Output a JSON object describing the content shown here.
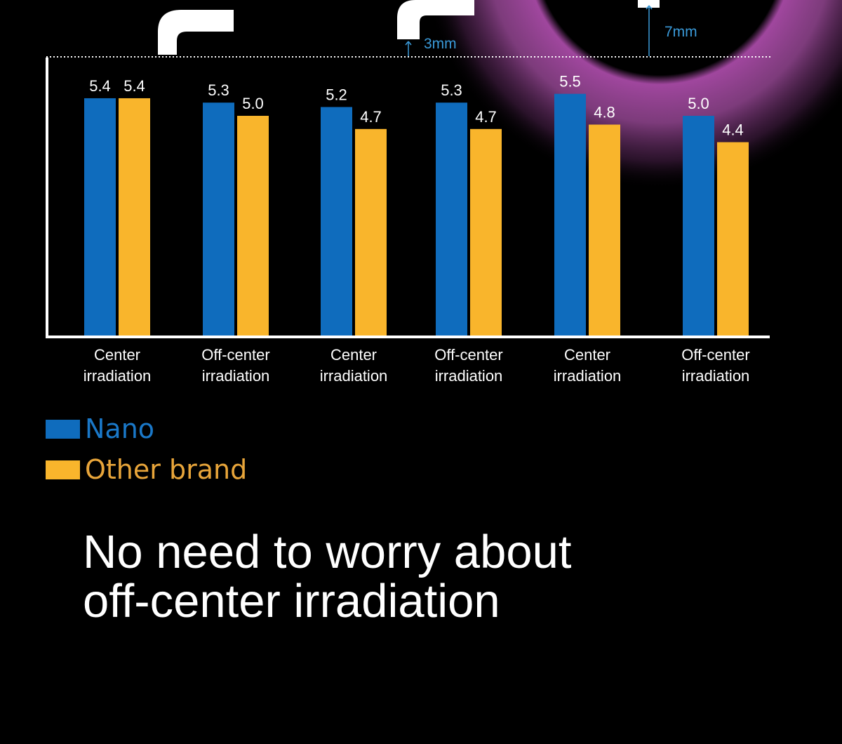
{
  "chart_data": {
    "type": "bar",
    "categories": [
      [
        "Center",
        "irradiation"
      ],
      [
        "Off-center",
        "irradiation"
      ],
      [
        "Center",
        "irradiation"
      ],
      [
        "Off-center",
        "irradiation"
      ],
      [
        "Center",
        "irradiation"
      ],
      [
        "Off-center",
        "irradiation"
      ]
    ],
    "series": [
      {
        "name": "Nano",
        "color": "#0f6cbd",
        "values": [
          5.4,
          5.3,
          5.2,
          5.3,
          5.5,
          5.0
        ],
        "labels": [
          "5.4",
          "5.3",
          "5.2",
          "5.3",
          "5.5",
          "5.0"
        ]
      },
      {
        "name": "Other brand",
        "color": "#f9b52c",
        "values": [
          5.4,
          5.0,
          4.7,
          4.7,
          4.8,
          4.4
        ],
        "labels": [
          "5.4",
          "5.0",
          "4.7",
          "4.7",
          "4.8",
          "4.4"
        ]
      }
    ],
    "ylim": [
      0,
      5.75
    ],
    "grid": false,
    "legend_position": "bottom-left",
    "annotations": [
      "3mm",
      "7mm"
    ],
    "annotation_color": "#3a9ad9"
  },
  "legend": {
    "nano": "Nano",
    "other": "Other brand",
    "nano_color": "#1a78c8",
    "other_color": "#e8a53a"
  },
  "headline": {
    "line1": "No need to worry about",
    "line2": "off-center irradiation"
  }
}
